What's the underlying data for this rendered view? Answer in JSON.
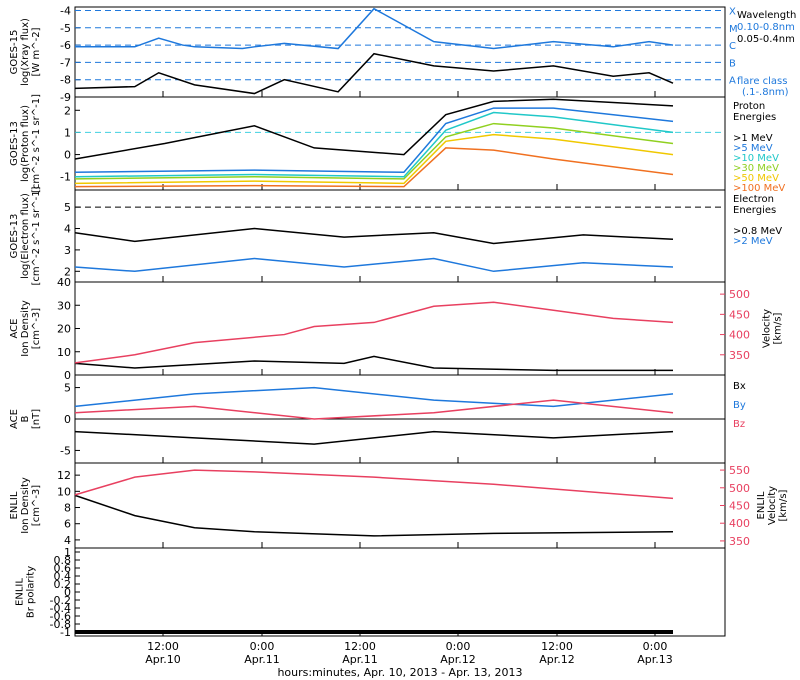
{
  "chart_data": [
    {
      "type": "line",
      "title": "",
      "ylabel": "GOES-15\nlog(Xray flux)\n[W m^-2]",
      "yticks": [
        -9,
        -8,
        -7,
        -6,
        -5,
        -4
      ],
      "ylim": [
        -9,
        -3.8
      ],
      "flare_lines": [
        -8,
        -7,
        -6,
        -5,
        -4
      ],
      "flare_classes": [
        "A",
        "B",
        "C",
        "M",
        "X"
      ],
      "legend": [
        "Wavelength",
        "0.10-0.8nm",
        "0.05-0.4nm",
        "flare class",
        "(.1-.8nm)"
      ],
      "series": [
        {
          "name": "0.10-0.8nm",
          "color": "#1e78dc",
          "x": [
            0,
            0.1,
            0.14,
            0.18,
            0.2,
            0.28,
            0.3,
            0.35,
            0.44,
            0.5,
            0.6,
            0.7,
            0.8,
            0.9,
            0.96,
            1.0
          ],
          "values": [
            -6.1,
            -6.1,
            -5.6,
            -6.0,
            -6.1,
            -6.2,
            -6.1,
            -5.9,
            -6.2,
            -3.9,
            -5.8,
            -6.2,
            -5.8,
            -6.1,
            -5.8,
            -6.0
          ]
        },
        {
          "name": "0.05-0.4nm",
          "color": "#000000",
          "x": [
            0,
            0.1,
            0.14,
            0.2,
            0.3,
            0.35,
            0.44,
            0.5,
            0.6,
            0.7,
            0.8,
            0.9,
            0.96,
            1.0
          ],
          "values": [
            -8.5,
            -8.4,
            -7.6,
            -8.3,
            -8.8,
            -8.0,
            -8.7,
            -6.5,
            -7.2,
            -7.5,
            -7.2,
            -7.8,
            -7.6,
            -8.2
          ]
        }
      ]
    },
    {
      "type": "line",
      "title": "",
      "ylabel": "GOES-13\nlog(Proton flux)\n[cm^-2 s^-1 sr^-1]",
      "yticks": [
        -1,
        0,
        1,
        2
      ],
      "ylim": [
        -1.6,
        2.6
      ],
      "threshold": 1,
      "legend_title": "Proton\nEnergies",
      "series": [
        {
          "name": ">1 MeV",
          "color": "#000000",
          "x": [
            0,
            0.15,
            0.3,
            0.4,
            0.55,
            0.62,
            0.7,
            0.8,
            1.0
          ],
          "values": [
            -0.2,
            0.5,
            1.3,
            0.3,
            0,
            1.8,
            2.4,
            2.5,
            2.2
          ]
        },
        {
          "name": ">5 MeV",
          "color": "#1e78dc",
          "x": [
            0,
            0.3,
            0.55,
            0.62,
            0.7,
            0.8,
            1.0
          ],
          "values": [
            -0.8,
            -0.7,
            -0.8,
            1.4,
            2.1,
            2.1,
            1.5
          ]
        },
        {
          "name": ">10 MeV",
          "color": "#20c8c8",
          "x": [
            0,
            0.3,
            0.55,
            0.62,
            0.7,
            0.8,
            1.0
          ],
          "values": [
            -1.0,
            -0.9,
            -1.0,
            1.1,
            1.9,
            1.7,
            1.0
          ]
        },
        {
          "name": ">30 MeV",
          "color": "#90d020",
          "x": [
            0,
            0.3,
            0.55,
            0.62,
            0.7,
            0.8,
            1.0
          ],
          "values": [
            -1.1,
            -1.0,
            -1.1,
            0.8,
            1.4,
            1.2,
            0.5
          ]
        },
        {
          "name": ">50 MeV",
          "color": "#f0c800",
          "x": [
            0,
            0.3,
            0.55,
            0.62,
            0.7,
            0.8,
            1.0
          ],
          "values": [
            -1.3,
            -1.2,
            -1.3,
            0.6,
            0.9,
            0.7,
            0.0
          ]
        },
        {
          "name": ">100 MeV",
          "color": "#f07020",
          "x": [
            0,
            0.3,
            0.55,
            0.62,
            0.7,
            0.8,
            1.0
          ],
          "values": [
            -1.45,
            -1.4,
            -1.45,
            0.3,
            0.2,
            -0.2,
            -0.9
          ]
        }
      ]
    },
    {
      "type": "line",
      "title": "",
      "ylabel": "GOES-13\nlog(Electron flux)\n[cm^-2 s^-1 sr^-1]",
      "yticks": [
        2,
        3,
        4,
        5
      ],
      "ylim": [
        1.5,
        5.8
      ],
      "threshold": 5,
      "legend_title": "Electron\nEnergies",
      "series": [
        {
          "name": ">0.8 MeV",
          "color": "#000000",
          "x": [
            0,
            0.1,
            0.3,
            0.45,
            0.6,
            0.7,
            0.85,
            1.0
          ],
          "values": [
            3.8,
            3.4,
            4.0,
            3.6,
            3.8,
            3.3,
            3.7,
            3.5
          ]
        },
        {
          "name": ">2 MeV",
          "color": "#1e78dc",
          "x": [
            0,
            0.1,
            0.3,
            0.45,
            0.6,
            0.7,
            0.85,
            1.0
          ],
          "values": [
            2.2,
            2.0,
            2.6,
            2.2,
            2.6,
            2.0,
            2.4,
            2.2
          ]
        }
      ]
    },
    {
      "type": "line",
      "title": "",
      "ylabel": "ACE\nIon Density\n[cm^-3]",
      "y2label": "Velocity\n[km/s]",
      "yticks": [
        0,
        10,
        20,
        30,
        40
      ],
      "ylim": [
        0,
        40
      ],
      "y2ticks": [
        350,
        400,
        450,
        500
      ],
      "y2lim": [
        300,
        530
      ],
      "series": [
        {
          "name": "Density",
          "color": "#000000",
          "axis": "left",
          "x": [
            0,
            0.1,
            0.3,
            0.45,
            0.5,
            0.6,
            0.8,
            1.0
          ],
          "values": [
            5,
            3,
            6,
            5,
            8,
            3,
            2,
            2
          ]
        },
        {
          "name": "Velocity",
          "color": "#e84060",
          "axis": "right",
          "x": [
            0,
            0.1,
            0.2,
            0.35,
            0.4,
            0.5,
            0.6,
            0.7,
            0.8,
            0.9,
            1.0
          ],
          "values": [
            330,
            350,
            380,
            400,
            420,
            430,
            470,
            480,
            460,
            440,
            430
          ]
        }
      ]
    },
    {
      "type": "line",
      "title": "",
      "ylabel": "ACE\nB\n[nT]",
      "yticks": [
        -5,
        0,
        5
      ],
      "ylim": [
        -7,
        7
      ],
      "legend": [
        "Bx",
        "By",
        "Bz"
      ],
      "series": [
        {
          "name": "Bx",
          "color": "#000000",
          "x": [
            0,
            0.2,
            0.4,
            0.6,
            0.8,
            1.0
          ],
          "values": [
            -2,
            -3,
            -4,
            -2,
            -3,
            -2
          ]
        },
        {
          "name": "By",
          "color": "#1e78dc",
          "x": [
            0,
            0.2,
            0.4,
            0.6,
            0.8,
            1.0
          ],
          "values": [
            2,
            4,
            5,
            3,
            2,
            4
          ]
        },
        {
          "name": "Bz",
          "color": "#e84060",
          "x": [
            0,
            0.2,
            0.4,
            0.6,
            0.8,
            1.0
          ],
          "values": [
            1,
            2,
            0,
            1,
            3,
            1
          ]
        }
      ]
    },
    {
      "type": "line",
      "title": "",
      "ylabel": "ENLIL\nIon Density\n[cm^-3]",
      "y2label": "ENLIL\nVelocity\n[km/s]",
      "yticks": [
        4,
        6,
        8,
        10,
        12
      ],
      "ylim": [
        3,
        13.5
      ],
      "y2ticks": [
        350,
        400,
        450,
        500,
        550
      ],
      "y2lim": [
        330,
        570
      ],
      "series": [
        {
          "name": "Density",
          "color": "#000000",
          "axis": "left",
          "x": [
            0,
            0.1,
            0.2,
            0.3,
            0.5,
            0.7,
            1.0
          ],
          "values": [
            9.5,
            7,
            5.5,
            5.0,
            4.5,
            4.8,
            5.0
          ]
        },
        {
          "name": "Velocity",
          "color": "#e84060",
          "axis": "right",
          "x": [
            0,
            0.1,
            0.2,
            0.3,
            0.5,
            0.7,
            1.0
          ],
          "values": [
            480,
            530,
            550,
            545,
            530,
            510,
            470
          ]
        }
      ]
    },
    {
      "type": "line",
      "title": "",
      "ylabel": "ENLIL\nBr polarity",
      "yticks": [
        -1.0,
        -0.8,
        -0.6,
        -0.4,
        -0.2,
        0.0,
        0.2,
        0.4,
        0.6,
        0.8,
        1.0
      ],
      "ylim": [
        -1.1,
        1.1
      ],
      "series": [
        {
          "name": "Br polarity",
          "color": "#000000",
          "x": [
            0,
            1.0
          ],
          "values": [
            -1.0,
            -1.0
          ]
        }
      ]
    }
  ],
  "x_axis": {
    "ticks": [
      {
        "label": "12:00",
        "sub": "Apr.10"
      },
      {
        "label": "0:00",
        "sub": "Apr.11"
      },
      {
        "label": "12:00",
        "sub": "Apr.11"
      },
      {
        "label": "0:00",
        "sub": "Apr.12"
      },
      {
        "label": "12:00",
        "sub": "Apr.12"
      },
      {
        "label": "0:00",
        "sub": "Apr.13"
      }
    ],
    "xlabel": "hours:minutes, Apr. 10, 2013 - Apr. 13, 2013"
  }
}
